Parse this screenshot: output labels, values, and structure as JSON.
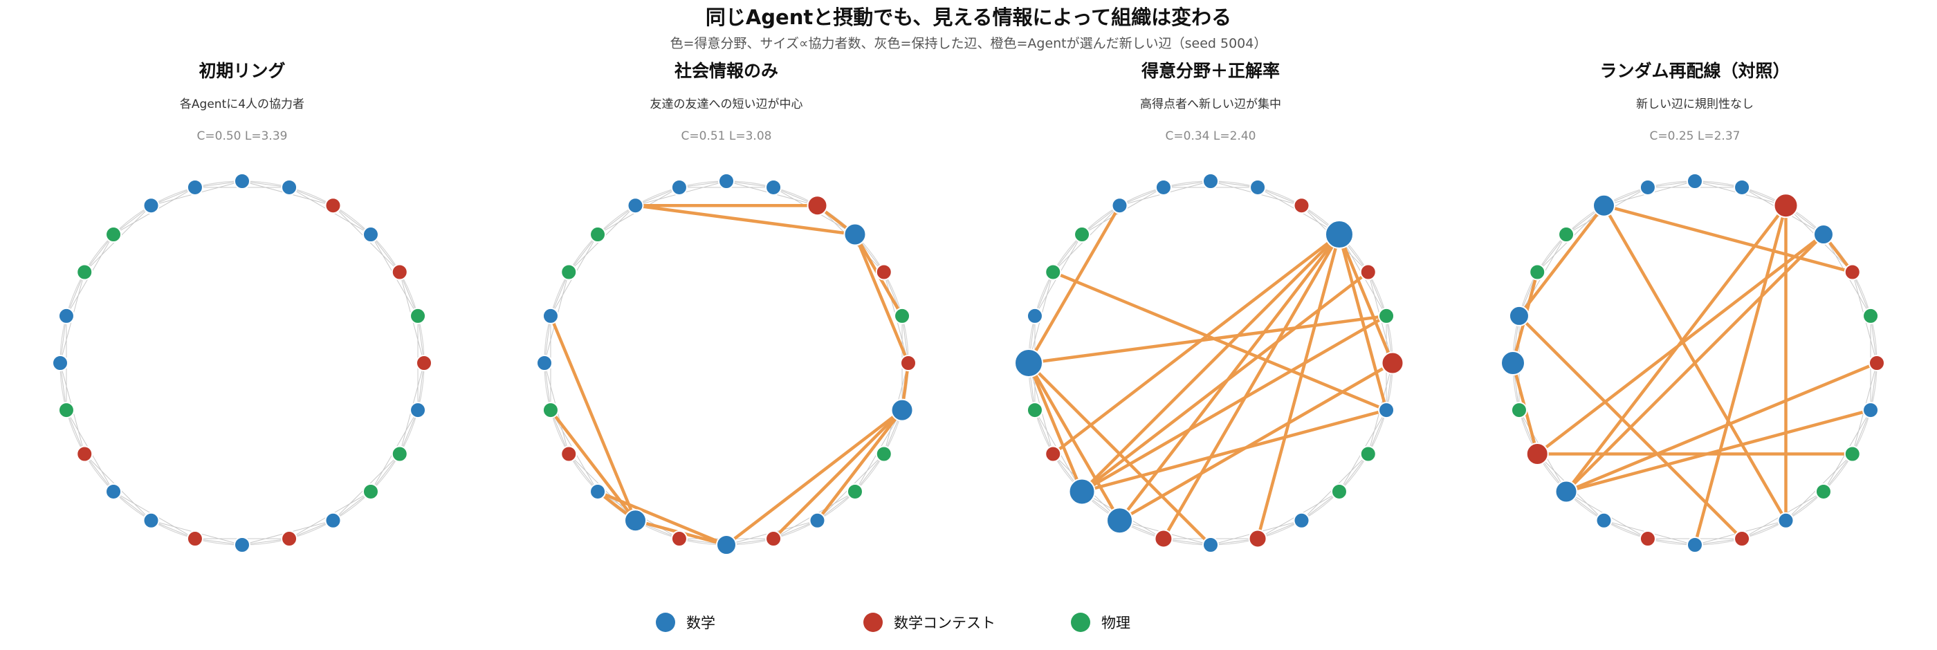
{
  "figure": {
    "title": "同じAgentと摂動でも、見える情報によって組織は変わる",
    "subtitle": "色=得意分野、サイズ∝協力者数、灰色=保持した辺、橙色=Agentが選んだ新しい辺（seed 5004）"
  },
  "colors": {
    "数学": "#2b7bba",
    "数学コンテスト": "#c0392b",
    "物理": "#27a35b",
    "kept_edge": "#c8c8c8",
    "new_edge": "#ec9a4b",
    "ring": "#d5d5d5"
  },
  "legend": [
    {
      "label": "数学",
      "field": "数学"
    },
    {
      "label": "数学コンテスト",
      "field": "数学コンテスト"
    },
    {
      "label": "物理",
      "field": "物理"
    }
  ],
  "chart_data": {
    "type": "network",
    "node_count": 24,
    "node_fields": [
      "数学",
      "数学",
      "数学コンテスト",
      "数学",
      "数学コンテスト",
      "物理",
      "数学コンテスト",
      "数学",
      "物理",
      "物理",
      "数学",
      "数学コンテスト",
      "数学",
      "数学コンテスト",
      "数学",
      "数学",
      "数学コンテスト",
      "物理",
      "数学",
      "数学",
      "物理",
      "物理",
      "数学",
      "数学"
    ],
    "panels": [
      {
        "title": "初期リング",
        "description": "各Agentに4人の協力者",
        "stats": "C=0.50 L=3.39",
        "node_degree": [
          4,
          4,
          4,
          4,
          4,
          4,
          4,
          4,
          4,
          4,
          4,
          4,
          4,
          4,
          4,
          4,
          4,
          4,
          4,
          4,
          4,
          4,
          4,
          4
        ],
        "new_edges": []
      },
      {
        "title": "社会情報のみ",
        "description": "友達の友達への短い辺が中心",
        "stats": "C=0.51 L=3.08",
        "node_degree": [
          4,
          4,
          6,
          7,
          4,
          4,
          4,
          7,
          4,
          4,
          4,
          4,
          6,
          4,
          7,
          4,
          4,
          4,
          4,
          4,
          4,
          4,
          4,
          4
        ],
        "new_edges": [
          [
            2,
            22
          ],
          [
            2,
            3
          ],
          [
            3,
            22
          ],
          [
            3,
            5
          ],
          [
            3,
            6
          ],
          [
            6,
            7
          ],
          [
            7,
            10
          ],
          [
            7,
            11
          ],
          [
            7,
            12
          ],
          [
            12,
            15
          ],
          [
            14,
            15
          ],
          [
            14,
            17
          ],
          [
            14,
            12
          ],
          [
            14,
            19
          ]
        ]
      },
      {
        "title": "得意分野＋正解率",
        "description": "高得点者へ新しい辺が集中",
        "stats": "C=0.34 L=2.40",
        "node_degree": [
          4,
          4,
          4,
          10,
          4,
          4,
          7,
          4,
          4,
          4,
          4,
          5,
          4,
          5,
          9,
          9,
          4,
          4,
          10,
          4,
          4,
          4,
          4,
          4
        ],
        "new_edges": [
          [
            3,
            7
          ],
          [
            3,
            11
          ],
          [
            3,
            13
          ],
          [
            3,
            14
          ],
          [
            3,
            15
          ],
          [
            3,
            16
          ],
          [
            3,
            6
          ],
          [
            5,
            18
          ],
          [
            5,
            15
          ],
          [
            7,
            15
          ],
          [
            7,
            20
          ],
          [
            12,
            18
          ],
          [
            14,
            18
          ],
          [
            15,
            18
          ],
          [
            4,
            15
          ],
          [
            22,
            18
          ],
          [
            6,
            14
          ]
        ]
      },
      {
        "title": "ランダム再配線（対照）",
        "description": "新しい辺に規則性なし",
        "stats": "C=0.25 L=2.37",
        "node_degree": [
          4,
          4,
          8,
          6,
          4,
          4,
          4,
          4,
          4,
          4,
          4,
          4,
          4,
          4,
          4,
          7,
          7,
          4,
          8,
          6,
          4,
          4,
          7,
          4
        ],
        "new_edges": [
          [
            2,
            10
          ],
          [
            2,
            12
          ],
          [
            2,
            15
          ],
          [
            3,
            15
          ],
          [
            3,
            16
          ],
          [
            4,
            22
          ],
          [
            6,
            15
          ],
          [
            7,
            15
          ],
          [
            8,
            16
          ],
          [
            11,
            19
          ],
          [
            22,
            19
          ],
          [
            22,
            10
          ],
          [
            18,
            16
          ],
          [
            18,
            20
          ],
          [
            3,
            4
          ]
        ]
      }
    ]
  }
}
